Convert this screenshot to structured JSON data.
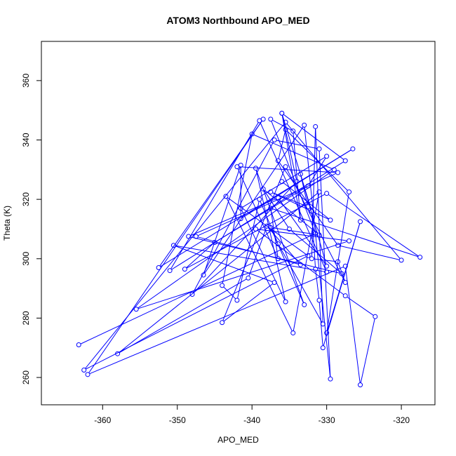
{
  "chart_data": {
    "type": "line",
    "title": "ATOM3 Northbound APO_MED",
    "xlabel": "APO_MED",
    "ylabel": "Theta (K)",
    "xlim": [
      -368.2,
      -315.5
    ],
    "ylim": [
      250.8,
      373.2
    ],
    "xticks": [
      -360,
      -350,
      -340,
      -330,
      -320
    ],
    "yticks": [
      260,
      280,
      300,
      320,
      340,
      360
    ],
    "grid": false,
    "line_color": "#0000ff",
    "markers": "open-circle",
    "series": [
      {
        "points": [
          [
            -363.2,
            271.0
          ],
          [
            -331.5,
            308.5
          ],
          [
            -337.5,
            347.0
          ],
          [
            -334.5,
            343.0
          ],
          [
            -333.5,
            313.0
          ],
          [
            -336.0,
            349.0
          ],
          [
            -334.0,
            326.0
          ],
          [
            -348.0,
            288.0
          ],
          [
            -337.0,
            340.0
          ],
          [
            -331.0,
            337.0
          ],
          [
            -329.5,
            259.5
          ],
          [
            -333.0,
            345.0
          ],
          [
            -346.5,
            294.5
          ],
          [
            -341.5,
            331.5
          ],
          [
            -341.5,
            313.5
          ],
          [
            -326.5,
            337.0
          ],
          [
            -352.5,
            297.0
          ],
          [
            -338.5,
            347.0
          ],
          [
            -362.0,
            261.0
          ],
          [
            -327.5,
            297.5
          ],
          [
            -325.5,
            257.5
          ],
          [
            -323.5,
            280.5
          ],
          [
            -327.5,
            287.5
          ],
          [
            -339.5,
            310.0
          ],
          [
            -327.0,
            306.0
          ],
          [
            -355.5,
            283.0
          ],
          [
            -329.0,
            330.0
          ],
          [
            -340.0,
            342.0
          ],
          [
            -344.0,
            291.0
          ],
          [
            -342.0,
            286.0
          ],
          [
            -339.0,
            320.0
          ],
          [
            -336.5,
            305.0
          ],
          [
            -330.5,
            278.0
          ],
          [
            -331.5,
            344.5
          ],
          [
            -332.0,
            300.0
          ],
          [
            -328.5,
            299.0
          ],
          [
            -327.5,
            292.0
          ],
          [
            -335.5,
            331.0
          ],
          [
            -344.0,
            278.5
          ],
          [
            -337.0,
            292.0
          ],
          [
            -350.5,
            304.5
          ],
          [
            -330.0,
            295.5
          ],
          [
            -339.0,
            346.5
          ],
          [
            -351.0,
            296.0
          ],
          [
            -327.5,
            333.0
          ],
          [
            -336.0,
            349.0
          ],
          [
            -332.0,
            316.0
          ],
          [
            -331.5,
            296.5
          ],
          [
            -331.0,
            286.0
          ],
          [
            -330.5,
            270.0
          ],
          [
            -325.5,
            312.5
          ],
          [
            -330.0,
            275.0
          ],
          [
            -327.0,
            322.5
          ],
          [
            -335.5,
            343.5
          ],
          [
            -336.5,
            333.0
          ],
          [
            -328.5,
            304.5
          ],
          [
            -320.0,
            299.5
          ],
          [
            -335.5,
            346.0
          ],
          [
            -362.5,
            262.5
          ],
          [
            -332.5,
            301.0
          ],
          [
            -343.5,
            321.0
          ],
          [
            -334.5,
            275.0
          ],
          [
            -331.0,
            322.5
          ],
          [
            -358.0,
            268.0
          ],
          [
            -340.5,
            293.5
          ],
          [
            -338.0,
            311.0
          ],
          [
            -333.5,
            298.0
          ],
          [
            -347.5,
            307.5
          ],
          [
            -328.5,
            329.0
          ],
          [
            -342.0,
            331.0
          ],
          [
            -336.5,
            300.0
          ],
          [
            -337.5,
            317.0
          ],
          [
            -317.5,
            300.5
          ],
          [
            -330.0,
            322.0
          ],
          [
            -349.0,
            296.5
          ],
          [
            -345.0,
            305.5
          ],
          [
            -332.5,
            324.5
          ],
          [
            -330.0,
            334.5
          ],
          [
            -341.5,
            317.0
          ],
          [
            -335.5,
            285.5
          ],
          [
            -339.5,
            330.5
          ],
          [
            -333.0,
            284.5
          ],
          [
            -337.5,
            310.5
          ],
          [
            -331.0,
            308.0
          ],
          [
            -338.5,
            323.5
          ],
          [
            -335.0,
            310.0
          ],
          [
            -328.0,
            295.0
          ],
          [
            -348.5,
            307.5
          ],
          [
            -336.5,
            320.5
          ],
          [
            -330.0,
            297.5
          ],
          [
            -333.5,
            328.5
          ],
          [
            -332.5,
            317.5
          ],
          [
            -337.5,
            322.5
          ],
          [
            -332.0,
            316.0
          ],
          [
            -329.5,
            313.0
          ],
          [
            -336.0,
            326.0
          ]
        ]
      }
    ]
  }
}
